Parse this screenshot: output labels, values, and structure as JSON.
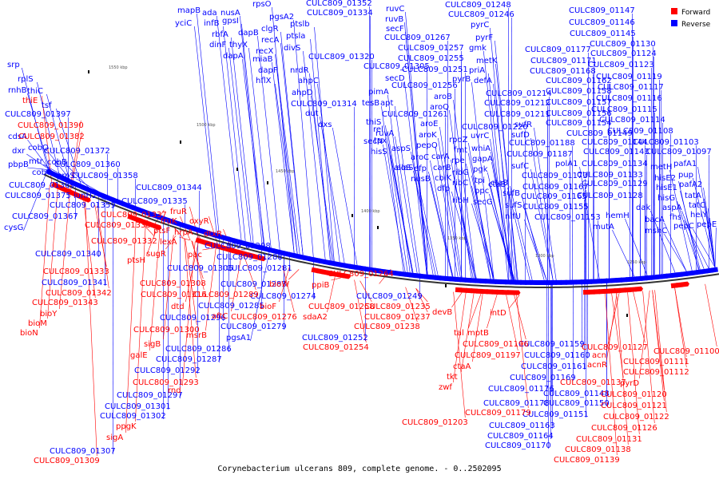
{
  "caption": "Corynebacterium ulcerans 809, complete genome. - 0..2502095",
  "legend": [
    {
      "label": "Forward",
      "color": "#ff0000"
    },
    {
      "label": "Reverse",
      "color": "#0000ff"
    }
  ],
  "colors": {
    "forward": "#ff0000",
    "reverse": "#0000ff",
    "backbone": "#333333",
    "tick_text": "#555555"
  },
  "ticks": [
    "1550 kbp",
    "1500 kbp",
    "1450 kbp",
    "1400 kbp",
    "1350 kbp",
    "1300 kbp",
    "1250 kbp"
  ],
  "genes_reverse": [
    "mapB",
    "yciC",
    "ada",
    "infB",
    "nusA",
    "rbfA",
    "gpsI",
    "dinF",
    "dapB",
    "thyX",
    "rpsO",
    "dapA",
    "clgR",
    "pgsA2",
    "recA",
    "ptslb",
    "recX",
    "miaB",
    "dapF",
    "hflX",
    "ptsla",
    "divS",
    "nrdR",
    "ahpC",
    "ahpD",
    "dut",
    "dxs",
    "CULC809_01352",
    "CULC809_01334",
    "CULC809_01320",
    "CULC809_01314",
    "srp",
    "rplS",
    "rnhB",
    "thiC",
    "tsf",
    "CULC809_01397",
    "cdsA",
    "dxr",
    "cobQ",
    "pbpB",
    "mtr",
    "cobB",
    "cobO",
    "proS",
    "CULC809_01372",
    "CULC809_01360",
    "CULC809_01358",
    "CULC809_01369",
    "CULC809_01375",
    "CULC809_01359",
    "CULC809_01367",
    "CULC809_01344",
    "CULC809_01335",
    "iunH2",
    "cysG",
    "CULC809_01248",
    "CULC809_01246",
    "ruvC",
    "ruvB",
    "secF",
    "CULC809_01267",
    "CULC809_01257",
    "CULC809_01255",
    "CULC809_01251",
    "pyrC",
    "pyrF",
    "gmk",
    "metK",
    "priA",
    "defA",
    "pyrB",
    "aroB",
    "aroQ",
    "CULC809_01256",
    "CULC809_01305",
    "secD",
    "pimA",
    "tesB",
    "apt",
    "thiS",
    "ruvA",
    "rel",
    "secN",
    "tpx",
    "hisS",
    "CULC809_01261",
    "aroE",
    "aroK",
    "pepQ",
    "aspS",
    "carA",
    "rpoZ",
    "fmt",
    "rpe",
    "carB",
    "efp",
    "cbiK",
    "ribG",
    "nusB",
    "aroC",
    "aloS",
    "alaS",
    "dfp",
    "ribC",
    "ribH",
    "CULC809_01214",
    "CULC809_01212",
    "CULC809_01211",
    "CULC809_01220",
    "uvrC",
    "whiA",
    "gapA",
    "pgk",
    "tpi",
    "ppc",
    "secG",
    "CULC809_01177",
    "CULC809_01171",
    "CULC809_01168",
    "CULC809_01162",
    "CULC809_01158",
    "CULC809_01157",
    "CULC809_01156",
    "CULC809_01154",
    "CULC809_01149",
    "CULC809_01147",
    "CULC809_01146",
    "CULC809_01145",
    "CULC809_01130",
    "CULC809_01124",
    "CULC809_01123",
    "CULC809_01119",
    "CULC809_01117",
    "CULC809_01116",
    "CULC809_01115",
    "CULC809_01114",
    "CULC809_01108",
    "CULC809_01103",
    "CULC809_01097",
    "CULC809_01188",
    "CULC809_01187",
    "CULC809_01144",
    "CULC809_01143",
    "CULC809_01134",
    "CULC809_01133",
    "CULC809_01129",
    "CULC809_01128",
    "CULC809_01173",
    "CULC809_01167",
    "CULC809_01165",
    "CULC809_01155",
    "CULC809_01153",
    "sufR",
    "sufD",
    "sufC",
    "sufB",
    "sufS",
    "nifU",
    "polA1",
    "cta8",
    "ctaB",
    "hemH",
    "mutA",
    "dak",
    "bacA",
    "mshC",
    "metH",
    "hisE2",
    "hisE1",
    "hisG",
    "aspA",
    "fhs",
    "pepC",
    "pafA1",
    "pup",
    "pafA2",
    "tatA",
    "tatC",
    "helY",
    "pepE",
    "CULC809_01298",
    "CULC809_01288",
    "CULC809_01306",
    "CULC809_01283",
    "CULC809_01281",
    "CULC809_01274",
    "CULC809_01285",
    "CULC809_01279",
    "CULC809_01296",
    "CULC809_01286",
    "CULC809_01287",
    "CULC809_01292",
    "CULC809_01297",
    "CULC809_01301",
    "CULC809_01302",
    "CULC809_01307",
    "pgsA1",
    "CULC809_01249",
    "CULC809_01252",
    "CULC809_01340",
    "CULC809_01341",
    "CULC809_01159",
    "CULC809_01160",
    "CULC809_01161",
    "CULC809_01169",
    "CULC809_01176",
    "CULC809_01178",
    "CULC809_01148",
    "CULC809_01150",
    "CULC809_01151",
    "CULC809_01163",
    "CULC809_01164",
    "CULC809_01170"
  ],
  "genes_forward": [
    "thiE",
    "CULC809_01390",
    "CULC809_01382",
    "CULC809_01337",
    "CULC809_01338",
    "CULC809_01332",
    "CULC809_01333",
    "CULC809_01342",
    "CULC809_01343",
    "bioY",
    "bioM",
    "bioN",
    "fruR",
    "fruK",
    "ptsF",
    "sugR",
    "ptsH",
    "oxyR",
    "hrpA",
    "lexA",
    "dtxR",
    "pac",
    "CULC809_01308",
    "CULC809_01316",
    "dtd",
    "CULC809_01289",
    "aftC",
    "CULC809_01276",
    "bioW",
    "bioF",
    "CULC809_01300",
    "msrB",
    "sigB",
    "galE",
    "CULC809_01293",
    "rnd",
    "ppgK",
    "sigA",
    "CULC809_01309",
    "CULC809_01264",
    "ppiB",
    "CULC809_01258",
    "CULC809_01237",
    "CULC809_01238",
    "sdaA2",
    "CULC809_01254",
    "CULC809_01235",
    "devB",
    "tal",
    "mptB",
    "intD",
    "CULC809_01196",
    "CULC809_01197",
    "ctaA",
    "tkt",
    "zwf",
    "CULC809_01203",
    "CULC809_01179",
    "CULC809_01127",
    "acn",
    "acnR",
    "CULC809_01137",
    "CULC809_01100",
    "CULC809_01111",
    "CULC809_01112",
    "pyrD",
    "CULC809_01120",
    "CULC809_01121",
    "CULC809_01122",
    "CULC809_01126",
    "CULC809_01131",
    "CULC809_01138",
    "CULC809_01139"
  ]
}
